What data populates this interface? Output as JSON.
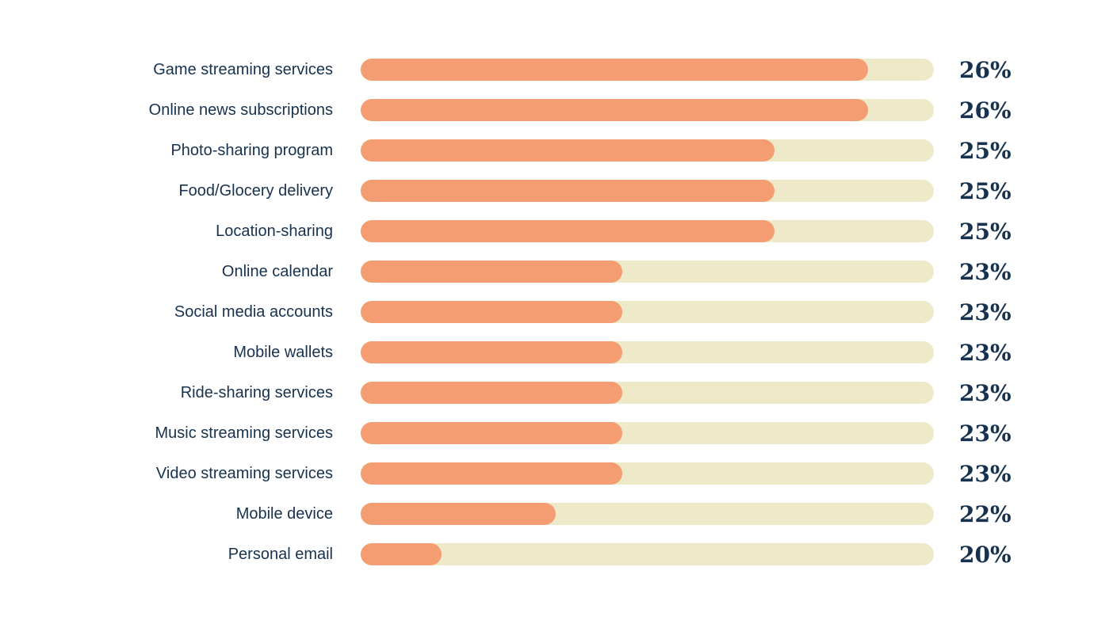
{
  "colors": {
    "background": "#ffffff",
    "bar_fill": "#f49c72",
    "bar_track": "#eee9c8",
    "text": "#17324e"
  },
  "chart_data": {
    "type": "bar",
    "orientation": "horizontal",
    "title": "",
    "xlabel": "",
    "ylabel": "",
    "legend": "none",
    "grid": false,
    "categories": [
      "Game streaming services",
      "Online news subscriptions",
      "Photo-sharing program",
      "Food/Glocery delivery",
      "Location-sharing",
      "Online calendar",
      "Social media accounts",
      "Mobile wallets",
      "Ride-sharing services",
      "Music streaming services",
      "Video streaming services",
      "Mobile device",
      "Personal email"
    ],
    "values": [
      26,
      26,
      25,
      25,
      25,
      23,
      23,
      23,
      23,
      23,
      23,
      22,
      20
    ],
    "value_labels": [
      "26%",
      "26%",
      "25%",
      "25%",
      "25%",
      "23%",
      "23%",
      "23%",
      "23%",
      "23%",
      "23%",
      "22%",
      "20%"
    ],
    "bar_fill_percents": [
      88.5,
      88.5,
      72.2,
      72.2,
      72.2,
      45.6,
      45.6,
      45.6,
      45.6,
      45.6,
      45.6,
      34.0,
      14.1
    ]
  }
}
